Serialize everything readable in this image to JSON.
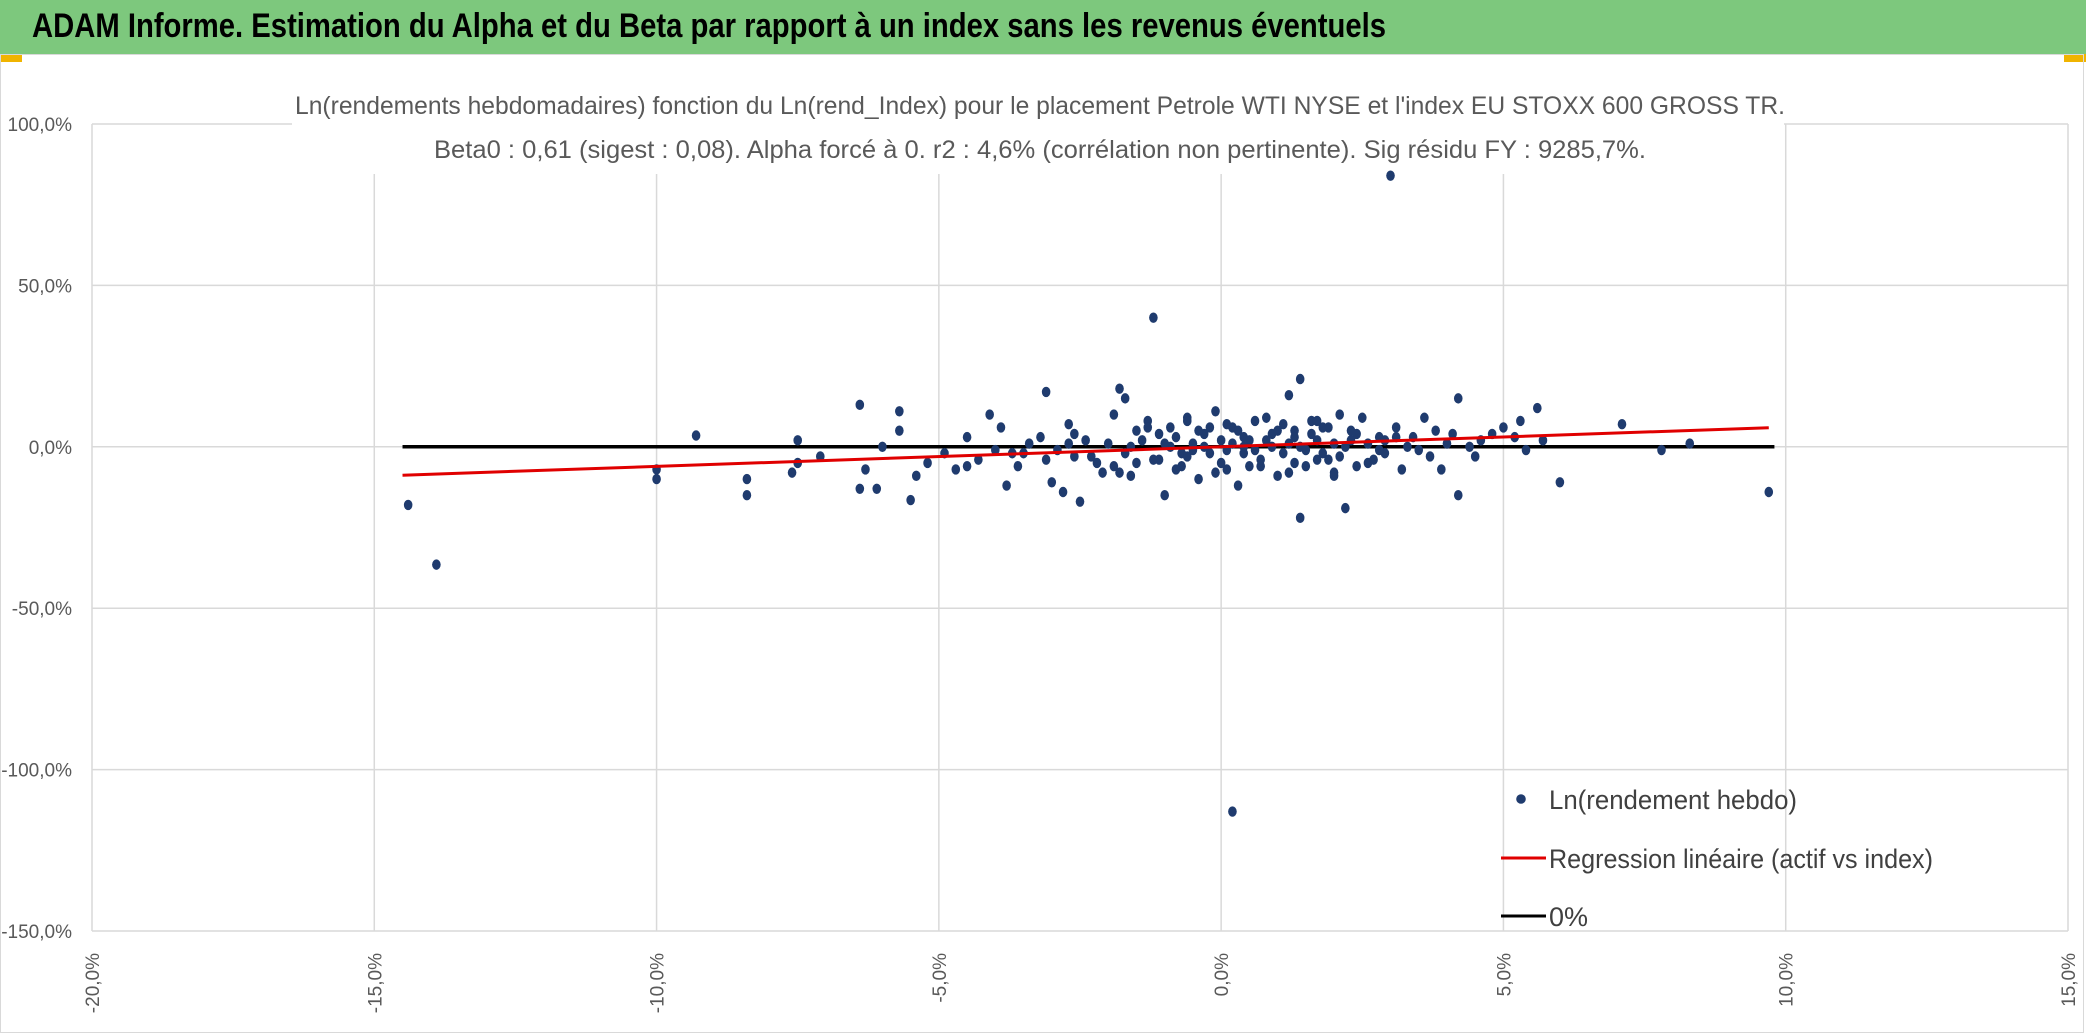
{
  "banner": {
    "title": "ADAM Informe. Estimation du Alpha et du Beta par rapport à un index sans les revenus éventuels"
  },
  "colors": {
    "banner_bg": "#7dc87d",
    "points": "#1f3b6e",
    "regression": "#e00000",
    "zero_line": "#000000",
    "grid": "#d9d9d9"
  },
  "chart_data": {
    "type": "scatter",
    "title": "Ln(rendements hebdomadaires) fonction du Ln(rend_Index) pour le placement Petrole WTI NYSE et l'index EU STOXX 600 GROSS TR.",
    "subtitle": "Beta0 : 0,61 (sigest : 0,08). Alpha forcé à 0. r2 : 4,6% (corrélation non pertinente). Sig résidu FY : 9285,7%.",
    "xlabel": "",
    "ylabel": "",
    "xlim": [
      -0.2,
      0.15
    ],
    "ylim": [
      -1.5,
      1.0
    ],
    "x_ticks": [
      -0.2,
      -0.15,
      -0.1,
      -0.05,
      0.0,
      0.05,
      0.1,
      0.15
    ],
    "x_tick_labels": [
      "-20,0%",
      "-15,0%",
      "-10,0%",
      "-5,0%",
      "0,0%",
      "5,0%",
      "10,0%",
      "15,0%"
    ],
    "y_ticks": [
      1.0,
      0.5,
      0.0,
      -0.5,
      -1.0,
      -1.5
    ],
    "y_tick_labels": [
      "100,0%",
      "50,0%",
      "0,0%",
      "-50,0%",
      "-100,0%",
      "-150,0%"
    ],
    "grid": "both",
    "legend_position": "bottom-right",
    "series": [
      {
        "name": "Ln(rendement hebdo)",
        "kind": "scatter",
        "points": [
          [
            -0.144,
            -0.18
          ],
          [
            -0.139,
            -0.365
          ],
          [
            -0.093,
            0.035
          ],
          [
            -0.1,
            -0.07
          ],
          [
            -0.1,
            -0.1
          ],
          [
            -0.084,
            -0.1
          ],
          [
            -0.084,
            -0.15
          ],
          [
            -0.076,
            -0.08
          ],
          [
            -0.075,
            0.02
          ],
          [
            -0.075,
            -0.05
          ],
          [
            -0.071,
            -0.03
          ],
          [
            -0.064,
            0.13
          ],
          [
            -0.063,
            -0.07
          ],
          [
            -0.064,
            -0.13
          ],
          [
            -0.061,
            -0.13
          ],
          [
            -0.06,
            0.0
          ],
          [
            -0.057,
            0.11
          ],
          [
            -0.057,
            0.05
          ],
          [
            -0.055,
            -0.165
          ],
          [
            -0.054,
            -0.09
          ],
          [
            -0.052,
            -0.05
          ],
          [
            -0.049,
            -0.02
          ],
          [
            -0.047,
            -0.07
          ],
          [
            -0.045,
            0.03
          ],
          [
            -0.043,
            -0.04
          ],
          [
            -0.041,
            0.1
          ],
          [
            -0.039,
            0.06
          ],
          [
            -0.038,
            -0.12
          ],
          [
            -0.036,
            -0.06
          ],
          [
            -0.035,
            -0.02
          ],
          [
            -0.032,
            0.03
          ],
          [
            -0.031,
            0.17
          ],
          [
            -0.03,
            -0.11
          ],
          [
            -0.028,
            -0.14
          ],
          [
            -0.027,
            0.07
          ],
          [
            -0.026,
            -0.03
          ],
          [
            -0.025,
            -0.17
          ],
          [
            -0.024,
            0.02
          ],
          [
            -0.021,
            -0.08
          ],
          [
            -0.019,
            0.1
          ],
          [
            -0.018,
            0.18
          ],
          [
            -0.017,
            0.15
          ],
          [
            -0.016,
            -0.09
          ],
          [
            -0.015,
            0.05
          ],
          [
            -0.013,
            0.08
          ],
          [
            -0.012,
            0.4
          ],
          [
            -0.011,
            -0.04
          ],
          [
            -0.01,
            -0.15
          ],
          [
            -0.009,
            0.06
          ],
          [
            -0.007,
            -0.02
          ],
          [
            -0.006,
            0.09
          ],
          [
            -0.004,
            -0.1
          ],
          [
            -0.003,
            0.04
          ],
          [
            -0.001,
            0.11
          ],
          [
            0.001,
            -0.07
          ],
          [
            0.002,
            0.06
          ],
          [
            0.003,
            -0.12
          ],
          [
            0.004,
            0.03
          ],
          [
            0.006,
            0.08
          ],
          [
            0.007,
            -0.06
          ],
          [
            0.009,
            0.04
          ],
          [
            0.01,
            -0.09
          ],
          [
            0.012,
            0.16
          ],
          [
            0.013,
            0.05
          ],
          [
            0.014,
            0.21
          ],
          [
            0.014,
            -0.22
          ],
          [
            0.016,
            0.08
          ],
          [
            0.017,
            -0.04
          ],
          [
            0.019,
            0.06
          ],
          [
            0.02,
            -0.08
          ],
          [
            0.021,
            0.1
          ],
          [
            0.022,
            -0.19
          ],
          [
            0.024,
            0.04
          ],
          [
            0.025,
            0.09
          ],
          [
            0.026,
            -0.05
          ],
          [
            0.028,
            0.03
          ],
          [
            0.029,
            -0.02
          ],
          [
            0.03,
            0.84
          ],
          [
            0.031,
            0.06
          ],
          [
            0.032,
            -0.07
          ],
          [
            0.034,
            0.03
          ],
          [
            0.036,
            0.09
          ],
          [
            0.037,
            -0.03
          ],
          [
            0.038,
            0.05
          ],
          [
            0.039,
            -0.07
          ],
          [
            0.041,
            0.04
          ],
          [
            0.042,
            0.15
          ],
          [
            0.042,
            -0.15
          ],
          [
            0.044,
            0.0
          ],
          [
            0.045,
            -0.03
          ],
          [
            0.046,
            0.02
          ],
          [
            0.048,
            0.04
          ],
          [
            0.05,
            0.06
          ],
          [
            0.052,
            0.03
          ],
          [
            0.053,
            0.08
          ],
          [
            0.054,
            -0.01
          ],
          [
            0.056,
            0.12
          ],
          [
            0.057,
            0.02
          ],
          [
            0.06,
            -0.11
          ],
          [
            0.071,
            0.07
          ],
          [
            0.078,
            -0.01
          ],
          [
            0.083,
            0.01
          ],
          [
            0.097,
            -0.14
          ],
          [
            0.002,
            -1.13
          ],
          [
            -0.045,
            -0.06
          ],
          [
            -0.04,
            -0.01
          ],
          [
            -0.034,
            0.01
          ],
          [
            -0.029,
            -0.01
          ],
          [
            -0.023,
            -0.03
          ],
          [
            -0.02,
            0.01
          ],
          [
            -0.017,
            -0.02
          ],
          [
            -0.014,
            0.02
          ],
          [
            -0.012,
            -0.04
          ],
          [
            -0.009,
            0.0
          ],
          [
            -0.008,
            0.03
          ],
          [
            -0.006,
            -0.03
          ],
          [
            -0.005,
            0.01
          ],
          [
            -0.003,
            0.0
          ],
          [
            -0.002,
            -0.02
          ],
          [
            0.0,
            0.02
          ],
          [
            0.001,
            -0.01
          ],
          [
            0.002,
            0.01
          ],
          [
            0.004,
            -0.02
          ],
          [
            0.005,
            0.02
          ],
          [
            0.006,
            -0.01
          ],
          [
            0.008,
            0.02
          ],
          [
            0.009,
            0.0
          ],
          [
            0.011,
            -0.02
          ],
          [
            0.012,
            0.01
          ],
          [
            0.014,
            0.0
          ],
          [
            0.015,
            -0.01
          ],
          [
            0.017,
            0.02
          ],
          [
            0.018,
            -0.02
          ],
          [
            0.02,
            0.01
          ],
          [
            0.022,
            0.0
          ],
          [
            0.023,
            0.02
          ],
          [
            0.026,
            0.01
          ],
          [
            0.029,
            0.02
          ],
          [
            0.033,
            0.0
          ],
          [
            -0.019,
            -0.06
          ],
          [
            -0.015,
            -0.05
          ],
          [
            -0.011,
            0.04
          ],
          [
            -0.007,
            -0.06
          ],
          [
            -0.004,
            0.05
          ],
          [
            0.0,
            -0.05
          ],
          [
            0.003,
            0.05
          ],
          [
            0.007,
            -0.04
          ],
          [
            0.01,
            0.05
          ],
          [
            0.013,
            -0.05
          ],
          [
            0.016,
            0.04
          ],
          [
            0.019,
            -0.04
          ],
          [
            0.023,
            0.05
          ],
          [
            0.027,
            -0.04
          ],
          [
            0.031,
            0.03
          ],
          [
            -0.026,
            0.04
          ],
          [
            -0.022,
            -0.05
          ],
          [
            -0.013,
            0.06
          ],
          [
            -0.008,
            -0.07
          ],
          [
            0.001,
            0.07
          ],
          [
            0.005,
            -0.06
          ],
          [
            0.011,
            0.07
          ],
          [
            0.015,
            -0.06
          ],
          [
            0.018,
            0.06
          ],
          [
            0.024,
            -0.06
          ],
          [
            -0.031,
            -0.04
          ],
          [
            -0.027,
            0.01
          ],
          [
            0.035,
            -0.01
          ],
          [
            0.04,
            0.01
          ],
          [
            -0.037,
            -0.02
          ],
          [
            -0.016,
            0.0
          ],
          [
            -0.01,
            0.01
          ],
          [
            -0.005,
            -0.01
          ],
          [
            0.004,
            0.0
          ],
          [
            0.013,
            0.03
          ],
          [
            0.021,
            -0.03
          ],
          [
            0.028,
            -0.01
          ],
          [
            -0.002,
            0.06
          ],
          [
            -0.001,
            -0.08
          ],
          [
            0.008,
            0.09
          ],
          [
            0.012,
            -0.08
          ],
          [
            0.017,
            0.08
          ],
          [
            0.02,
            -0.09
          ],
          [
            -0.018,
            -0.08
          ],
          [
            -0.006,
            0.08
          ]
        ]
      },
      {
        "name": "Regression linéaire (actif vs index)",
        "kind": "line",
        "x": [
          -0.145,
          0.097
        ],
        "y": [
          -0.088,
          0.059
        ]
      },
      {
        "name": "0%",
        "kind": "line",
        "x": [
          -0.145,
          0.098
        ],
        "y": [
          0.0,
          0.0
        ]
      }
    ]
  }
}
